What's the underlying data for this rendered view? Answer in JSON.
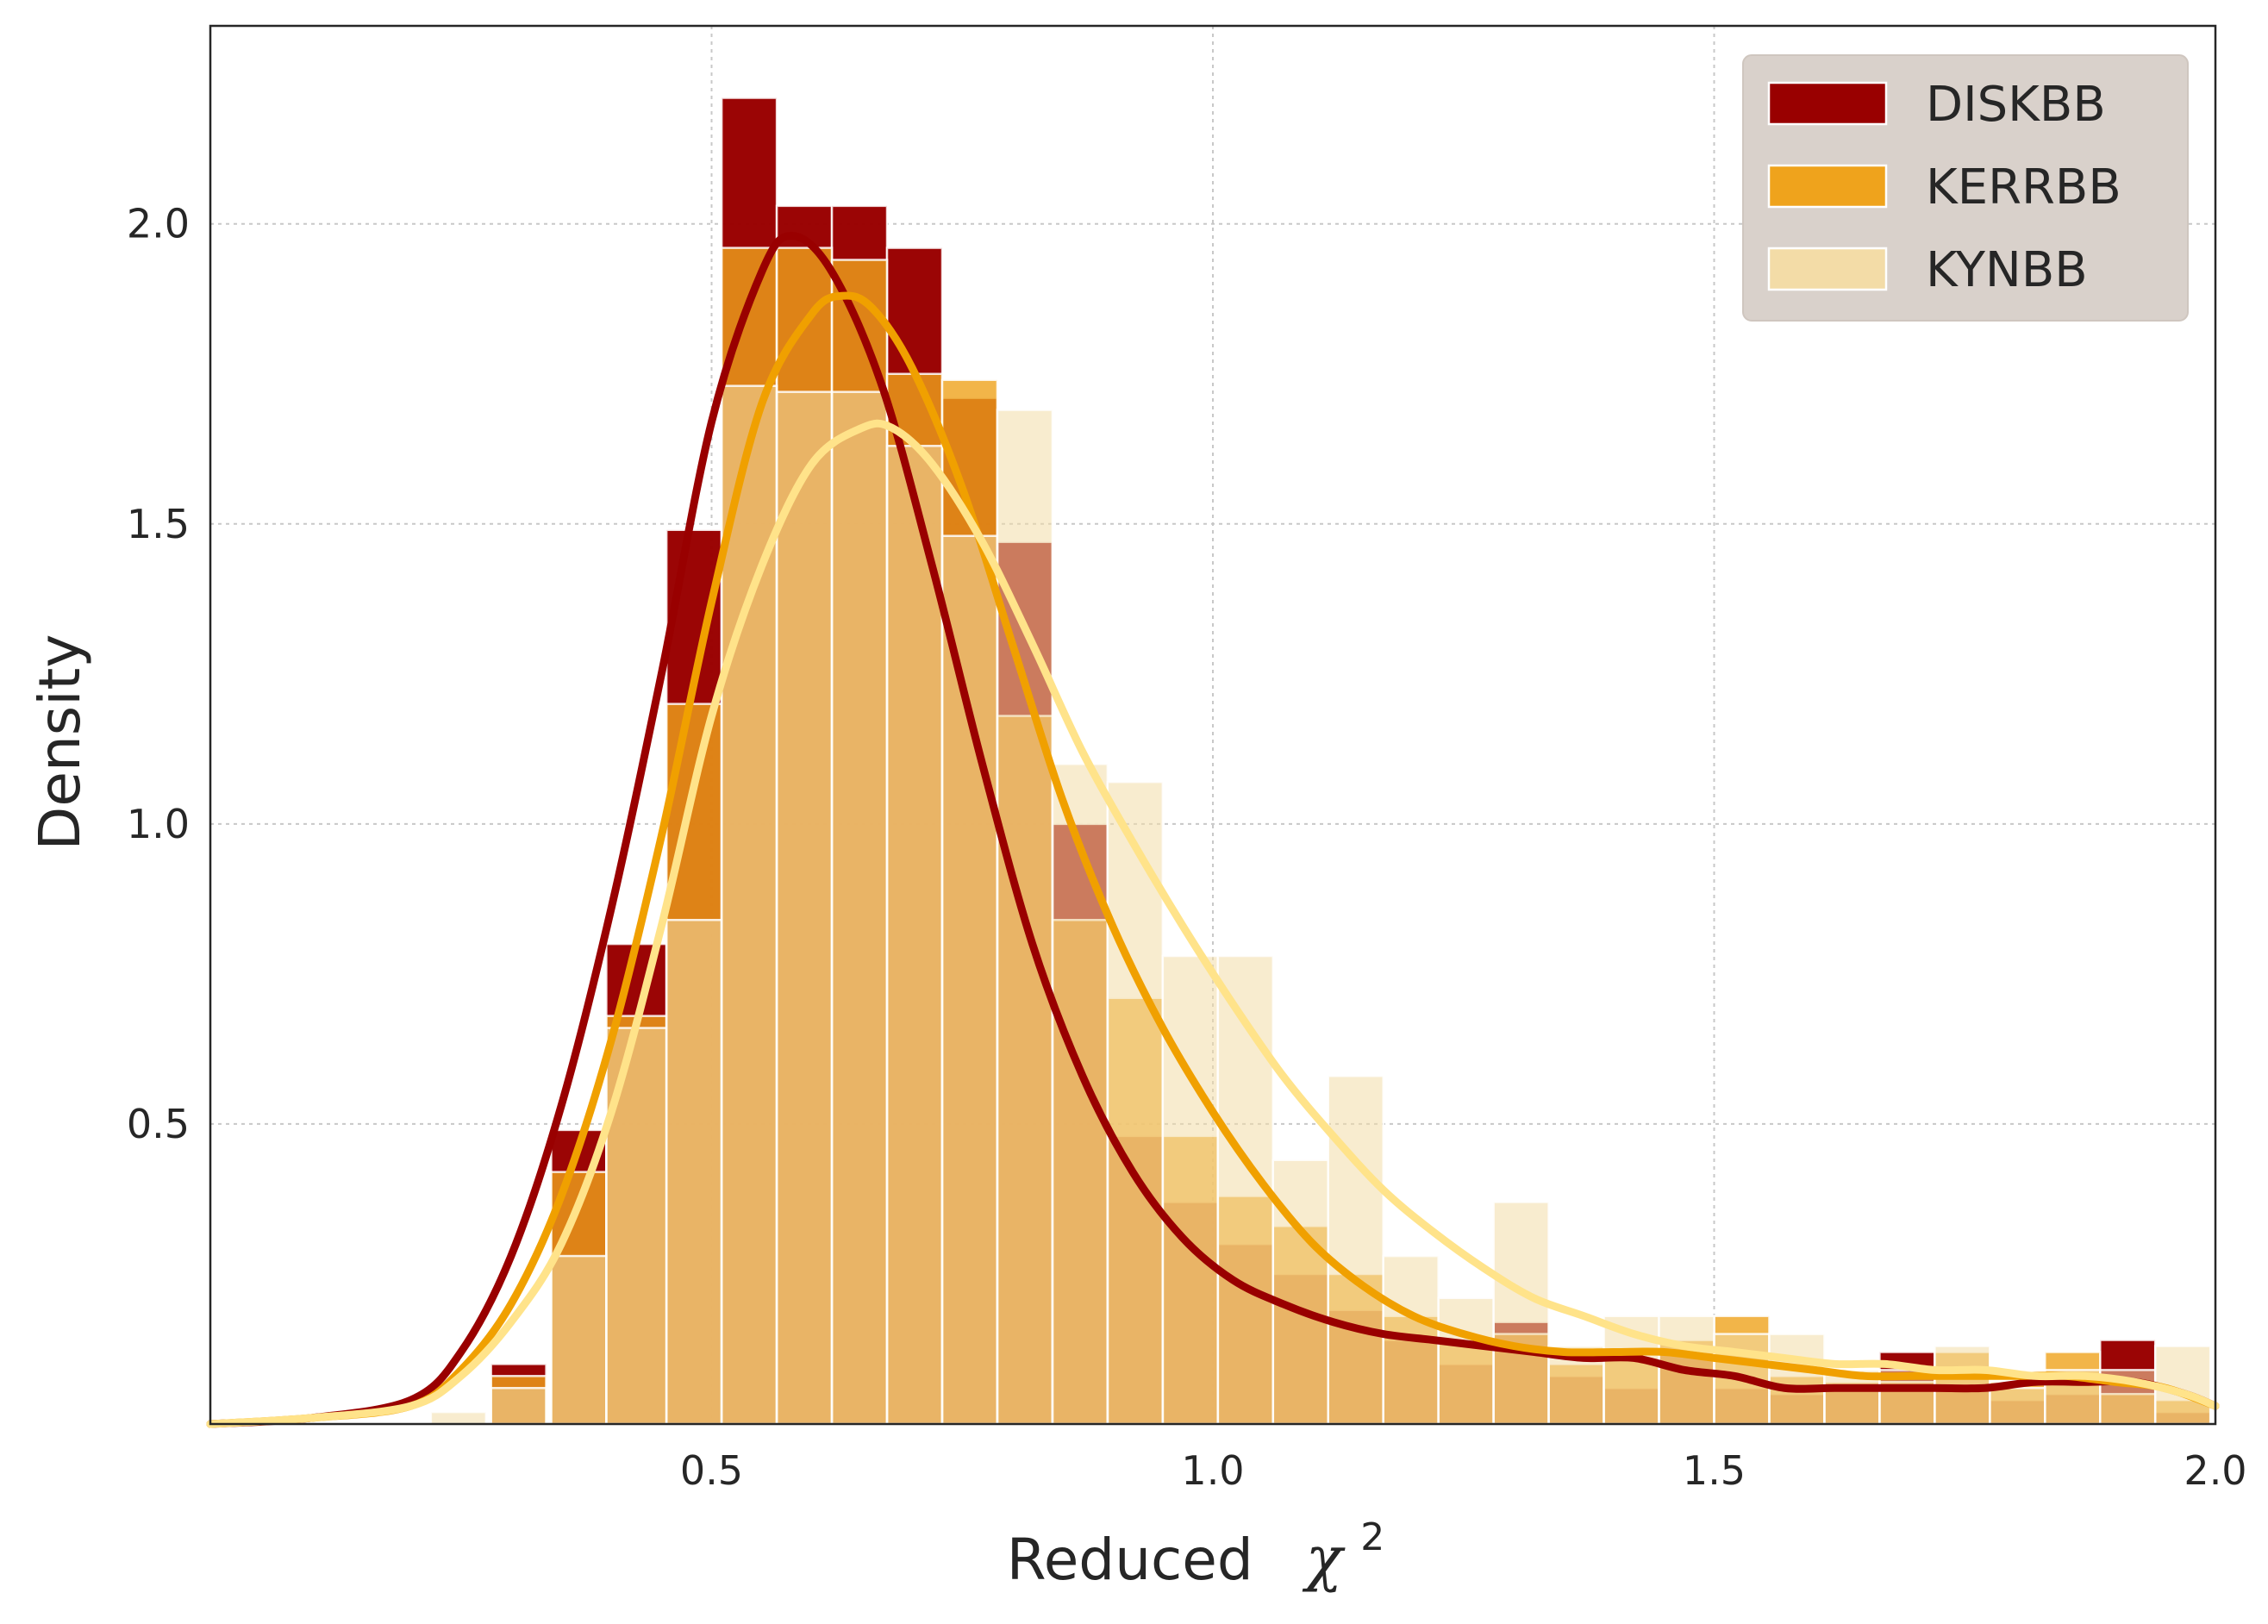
{
  "chart_data": {
    "type": "bar",
    "title": "",
    "xlabel": "Reduced",
    "xlabel_symbol": "χ",
    "xlabel_superscript": "2",
    "ylabel": "Density",
    "xlim": [
      0.0,
      2.0
    ],
    "ylim": [
      0.0,
      2.33
    ],
    "xticks": [
      0.5,
      1.0,
      1.5,
      2.0
    ],
    "xtick_labels": [
      "0.5",
      "1.0",
      "1.5",
      "2.0"
    ],
    "yticks": [
      0.5,
      1.0,
      1.5,
      2.0
    ],
    "ytick_labels": [
      "0.5",
      "1.0",
      "1.5",
      "2.0"
    ],
    "grid": true,
    "legend_position": "top-right",
    "series": [
      {
        "name": "DISKBB",
        "bar_color": "#990000",
        "line_color": "#990000",
        "bins": [
          {
            "x0": 0.28,
            "x1": 0.335,
            "h": 0.1
          },
          {
            "x0": 0.34,
            "x1": 0.395,
            "h": 0.49
          },
          {
            "x0": 0.395,
            "x1": 0.455,
            "h": 0.8
          },
          {
            "x0": 0.455,
            "x1": 0.51,
            "h": 1.49
          },
          {
            "x0": 0.51,
            "x1": 0.565,
            "h": 2.21
          },
          {
            "x0": 0.565,
            "x1": 0.62,
            "h": 2.03
          },
          {
            "x0": 0.62,
            "x1": 0.675,
            "h": 2.03
          },
          {
            "x0": 0.675,
            "x1": 0.73,
            "h": 1.96
          },
          {
            "x0": 0.73,
            "x1": 0.785,
            "h": 1.71
          },
          {
            "x0": 0.785,
            "x1": 0.84,
            "h": 1.47
          },
          {
            "x0": 0.84,
            "x1": 0.895,
            "h": 1.0
          },
          {
            "x0": 0.895,
            "x1": 0.95,
            "h": 0.48
          },
          {
            "x0": 0.95,
            "x1": 1.005,
            "h": 0.37
          },
          {
            "x0": 1.005,
            "x1": 1.06,
            "h": 0.3
          },
          {
            "x0": 1.06,
            "x1": 1.115,
            "h": 0.25
          },
          {
            "x0": 1.115,
            "x1": 1.17,
            "h": 0.19
          },
          {
            "x0": 1.17,
            "x1": 1.225,
            "h": 0.14
          },
          {
            "x0": 1.225,
            "x1": 1.28,
            "h": 0.1
          },
          {
            "x0": 1.28,
            "x1": 1.335,
            "h": 0.17
          },
          {
            "x0": 1.335,
            "x1": 1.39,
            "h": 0.08
          },
          {
            "x0": 1.39,
            "x1": 1.445,
            "h": 0.06
          },
          {
            "x0": 1.445,
            "x1": 1.5,
            "h": 0.12
          },
          {
            "x0": 1.5,
            "x1": 1.555,
            "h": 0.06
          },
          {
            "x0": 1.555,
            "x1": 1.61,
            "h": 0.05
          },
          {
            "x0": 1.61,
            "x1": 1.665,
            "h": 0.06
          },
          {
            "x0": 1.665,
            "x1": 1.72,
            "h": 0.12
          },
          {
            "x0": 1.72,
            "x1": 1.775,
            "h": 0.06
          },
          {
            "x0": 1.775,
            "x1": 1.83,
            "h": 0.04
          },
          {
            "x0": 1.83,
            "x1": 1.885,
            "h": 0.05
          },
          {
            "x0": 1.885,
            "x1": 1.94,
            "h": 0.14
          },
          {
            "x0": 1.94,
            "x1": 1.995,
            "h": 0.02
          }
        ],
        "kde": {
          "x": [
            0.0,
            0.1,
            0.2,
            0.25,
            0.3,
            0.35,
            0.4,
            0.45,
            0.5,
            0.55,
            0.58,
            0.62,
            0.67,
            0.72,
            0.77,
            0.82,
            0.87,
            0.92,
            0.97,
            1.02,
            1.07,
            1.12,
            1.17,
            1.22,
            1.27,
            1.32,
            1.37,
            1.42,
            1.47,
            1.52,
            1.57,
            1.62,
            1.67,
            1.72,
            1.77,
            1.82,
            1.87,
            1.92,
            1.97,
            2.0
          ],
          "y": [
            0.0,
            0.01,
            0.04,
            0.12,
            0.28,
            0.53,
            0.86,
            1.25,
            1.67,
            1.92,
            1.98,
            1.92,
            1.73,
            1.43,
            1.1,
            0.8,
            0.58,
            0.42,
            0.31,
            0.24,
            0.2,
            0.17,
            0.15,
            0.14,
            0.13,
            0.12,
            0.11,
            0.11,
            0.09,
            0.08,
            0.06,
            0.06,
            0.06,
            0.06,
            0.06,
            0.07,
            0.07,
            0.07,
            0.05,
            0.03
          ]
        }
      },
      {
        "name": "KERRBB",
        "bar_color": "#EFA31C",
        "line_color": "#F0A000",
        "bins": [
          {
            "x0": 0.28,
            "x1": 0.335,
            "h": 0.08
          },
          {
            "x0": 0.34,
            "x1": 0.395,
            "h": 0.42
          },
          {
            "x0": 0.395,
            "x1": 0.455,
            "h": 0.68
          },
          {
            "x0": 0.455,
            "x1": 0.51,
            "h": 1.2
          },
          {
            "x0": 0.51,
            "x1": 0.565,
            "h": 1.96
          },
          {
            "x0": 0.565,
            "x1": 0.62,
            "h": 1.96
          },
          {
            "x0": 0.62,
            "x1": 0.675,
            "h": 1.94
          },
          {
            "x0": 0.675,
            "x1": 0.73,
            "h": 1.75
          },
          {
            "x0": 0.73,
            "x1": 0.785,
            "h": 1.74
          },
          {
            "x0": 0.785,
            "x1": 0.84,
            "h": 1.18
          },
          {
            "x0": 0.84,
            "x1": 0.895,
            "h": 0.84
          },
          {
            "x0": 0.895,
            "x1": 0.95,
            "h": 0.71
          },
          {
            "x0": 0.95,
            "x1": 1.005,
            "h": 0.48
          },
          {
            "x0": 1.005,
            "x1": 1.06,
            "h": 0.38
          },
          {
            "x0": 1.06,
            "x1": 1.115,
            "h": 0.33
          },
          {
            "x0": 1.115,
            "x1": 1.17,
            "h": 0.25
          },
          {
            "x0": 1.17,
            "x1": 1.225,
            "h": 0.18
          },
          {
            "x0": 1.225,
            "x1": 1.28,
            "h": 0.14
          },
          {
            "x0": 1.28,
            "x1": 1.335,
            "h": 0.15
          },
          {
            "x0": 1.335,
            "x1": 1.39,
            "h": 0.1
          },
          {
            "x0": 1.39,
            "x1": 1.445,
            "h": 0.11
          },
          {
            "x0": 1.445,
            "x1": 1.5,
            "h": 0.14
          },
          {
            "x0": 1.5,
            "x1": 1.555,
            "h": 0.18
          },
          {
            "x0": 1.555,
            "x1": 1.61,
            "h": 0.08
          },
          {
            "x0": 1.61,
            "x1": 1.665,
            "h": 0.07
          },
          {
            "x0": 1.665,
            "x1": 1.72,
            "h": 0.07
          },
          {
            "x0": 1.72,
            "x1": 1.775,
            "h": 0.12
          },
          {
            "x0": 1.775,
            "x1": 1.83,
            "h": 0.07
          },
          {
            "x0": 1.83,
            "x1": 1.885,
            "h": 0.12
          },
          {
            "x0": 1.885,
            "x1": 1.94,
            "h": 0.05
          },
          {
            "x0": 1.94,
            "x1": 1.995,
            "h": 0.04
          }
        ],
        "kde": {
          "x": [
            0.0,
            0.1,
            0.2,
            0.25,
            0.3,
            0.35,
            0.4,
            0.45,
            0.5,
            0.55,
            0.6,
            0.63,
            0.66,
            0.7,
            0.75,
            0.8,
            0.85,
            0.9,
            0.95,
            1.0,
            1.05,
            1.1,
            1.15,
            1.2,
            1.25,
            1.3,
            1.35,
            1.4,
            1.45,
            1.5,
            1.55,
            1.6,
            1.65,
            1.7,
            1.75,
            1.8,
            1.85,
            1.9,
            1.95,
            2.0
          ],
          "y": [
            0.0,
            0.01,
            0.03,
            0.09,
            0.2,
            0.38,
            0.64,
            0.98,
            1.37,
            1.7,
            1.85,
            1.88,
            1.86,
            1.76,
            1.56,
            1.3,
            1.04,
            0.83,
            0.66,
            0.52,
            0.4,
            0.3,
            0.23,
            0.18,
            0.15,
            0.13,
            0.12,
            0.12,
            0.12,
            0.11,
            0.1,
            0.09,
            0.08,
            0.08,
            0.08,
            0.08,
            0.08,
            0.07,
            0.06,
            0.03
          ]
        }
      },
      {
        "name": "KYNBB",
        "bar_color": "#F3DCA7",
        "line_color": "#FFE38A",
        "bins": [
          {
            "x0": 0.22,
            "x1": 0.275,
            "h": 0.02
          },
          {
            "x0": 0.28,
            "x1": 0.335,
            "h": 0.06
          },
          {
            "x0": 0.34,
            "x1": 0.395,
            "h": 0.28
          },
          {
            "x0": 0.395,
            "x1": 0.455,
            "h": 0.66
          },
          {
            "x0": 0.455,
            "x1": 0.51,
            "h": 0.84
          },
          {
            "x0": 0.51,
            "x1": 0.565,
            "h": 1.73
          },
          {
            "x0": 0.565,
            "x1": 0.62,
            "h": 1.72
          },
          {
            "x0": 0.62,
            "x1": 0.675,
            "h": 1.72
          },
          {
            "x0": 0.675,
            "x1": 0.73,
            "h": 1.63
          },
          {
            "x0": 0.73,
            "x1": 0.785,
            "h": 1.48
          },
          {
            "x0": 0.785,
            "x1": 0.84,
            "h": 1.69
          },
          {
            "x0": 0.84,
            "x1": 0.895,
            "h": 1.1
          },
          {
            "x0": 0.895,
            "x1": 0.95,
            "h": 1.07
          },
          {
            "x0": 0.95,
            "x1": 1.005,
            "h": 0.78
          },
          {
            "x0": 1.005,
            "x1": 1.06,
            "h": 0.78
          },
          {
            "x0": 1.06,
            "x1": 1.115,
            "h": 0.44
          },
          {
            "x0": 1.115,
            "x1": 1.17,
            "h": 0.58
          },
          {
            "x0": 1.17,
            "x1": 1.225,
            "h": 0.28
          },
          {
            "x0": 1.225,
            "x1": 1.28,
            "h": 0.21
          },
          {
            "x0": 1.28,
            "x1": 1.335,
            "h": 0.37
          },
          {
            "x0": 1.335,
            "x1": 1.39,
            "h": 0.13
          },
          {
            "x0": 1.39,
            "x1": 1.445,
            "h": 0.18
          },
          {
            "x0": 1.445,
            "x1": 1.5,
            "h": 0.18
          },
          {
            "x0": 1.5,
            "x1": 1.555,
            "h": 0.15
          },
          {
            "x0": 1.555,
            "x1": 1.61,
            "h": 0.15
          },
          {
            "x0": 1.61,
            "x1": 1.665,
            "h": 0.09
          },
          {
            "x0": 1.665,
            "x1": 1.72,
            "h": 0.09
          },
          {
            "x0": 1.72,
            "x1": 1.775,
            "h": 0.13
          },
          {
            "x0": 1.775,
            "x1": 1.83,
            "h": 0.06
          },
          {
            "x0": 1.83,
            "x1": 1.885,
            "h": 0.09
          },
          {
            "x0": 1.885,
            "x1": 1.94,
            "h": 0.09
          },
          {
            "x0": 1.94,
            "x1": 1.995,
            "h": 0.13
          }
        ],
        "kde": {
          "x": [
            0.0,
            0.1,
            0.2,
            0.25,
            0.3,
            0.35,
            0.4,
            0.45,
            0.5,
            0.55,
            0.6,
            0.65,
            0.68,
            0.72,
            0.77,
            0.82,
            0.87,
            0.92,
            0.97,
            1.02,
            1.07,
            1.12,
            1.17,
            1.22,
            1.27,
            1.32,
            1.37,
            1.42,
            1.47,
            1.52,
            1.57,
            1.62,
            1.67,
            1.72,
            1.77,
            1.82,
            1.87,
            1.92,
            1.97,
            2.0
          ],
          "y": [
            0.0,
            0.01,
            0.03,
            0.08,
            0.17,
            0.3,
            0.52,
            0.83,
            1.18,
            1.43,
            1.6,
            1.66,
            1.66,
            1.6,
            1.47,
            1.3,
            1.12,
            0.97,
            0.83,
            0.7,
            0.58,
            0.48,
            0.39,
            0.32,
            0.26,
            0.21,
            0.18,
            0.15,
            0.13,
            0.12,
            0.11,
            0.1,
            0.1,
            0.09,
            0.09,
            0.08,
            0.08,
            0.07,
            0.05,
            0.03
          ]
        }
      }
    ],
    "legend": [
      {
        "label": "DISKBB",
        "color": "#990000"
      },
      {
        "label": "KERRBB",
        "color": "#EFA31C"
      },
      {
        "label": "KYNBB",
        "color": "#F3DCA7"
      }
    ]
  }
}
